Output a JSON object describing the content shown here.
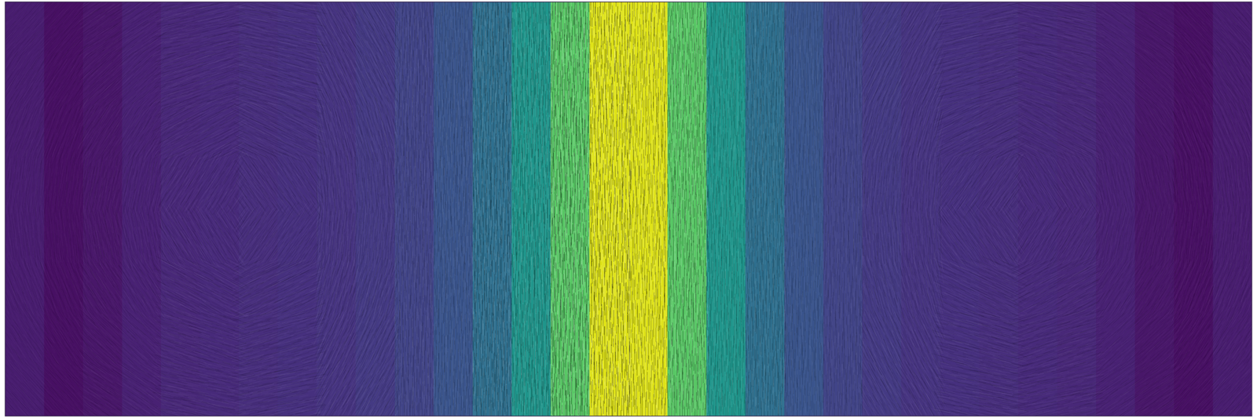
{
  "chart_data": {
    "type": "heatmap",
    "tick_labels": false,
    "color": "viridis",
    "zlim": [
      0,
      1
    ],
    "values": [
      0.08,
      0.04,
      0.06,
      0.09,
      0.11,
      0.12,
      0.13,
      0.14,
      0.15,
      0.17,
      0.2,
      0.26,
      0.36,
      0.52,
      0.74,
      0.95,
      0.95,
      0.74,
      0.52,
      0.36,
      0.26,
      0.2,
      0.17,
      0.15,
      0.14,
      0.13,
      0.12,
      0.11,
      0.09,
      0.06,
      0.04,
      0.08
    ],
    "angles": [
      [
        48,
        34,
        13,
        168,
        120,
        90,
        90,
        90,
        90,
        90,
        90,
        60,
        12,
        167,
        146,
        132
      ],
      [
        57,
        43,
        18,
        164,
        115,
        90,
        90,
        90,
        90,
        90,
        90,
        65,
        16,
        162,
        137,
        123
      ],
      [
        69,
        57,
        28,
        154,
        105,
        90,
        90,
        90,
        90,
        90,
        90,
        75,
        26,
        152,
        123,
        111
      ],
      [
        83,
        78,
        58,
        125,
        95,
        90,
        90,
        90,
        90,
        90,
        90,
        85,
        55,
        122,
        102,
        97
      ],
      [
        97,
        102,
        122,
        55,
        85,
        90,
        90,
        90,
        90,
        90,
        90,
        95,
        125,
        58,
        78,
        83
      ],
      [
        111,
        123,
        152,
        26,
        75,
        90,
        90,
        90,
        90,
        90,
        90,
        105,
        154,
        28,
        57,
        69
      ],
      [
        123,
        137,
        162,
        16,
        65,
        90,
        90,
        90,
        90,
        90,
        90,
        115,
        164,
        18,
        43,
        57
      ],
      [
        132,
        146,
        167,
        12,
        60,
        90,
        90,
        90,
        90,
        90,
        90,
        120,
        168,
        13,
        34,
        48
      ]
    ]
  }
}
